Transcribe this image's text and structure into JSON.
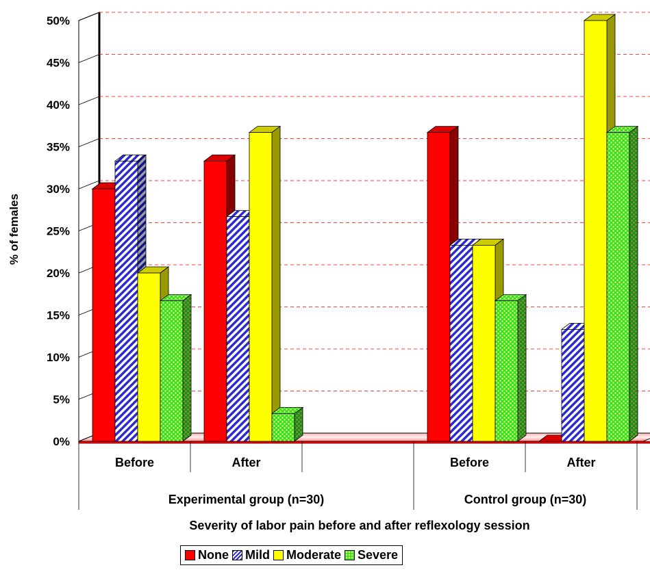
{
  "chart_data": {
    "type": "bar",
    "ylabel": "% of females",
    "xlabel": "Severity of labor pain before and after reflexology session",
    "ylim": [
      0,
      50
    ],
    "yticks": [
      "0%",
      "5%",
      "10%",
      "15%",
      "20%",
      "25%",
      "30%",
      "35%",
      "40%",
      "45%",
      "50%"
    ],
    "grid": true,
    "legend_position": "bottom",
    "groups": [
      {
        "label": "Experimental group (n=30)",
        "categories": [
          "Before",
          "After"
        ]
      },
      {
        "label": "Control group (n=30)",
        "categories": [
          "Before",
          "After"
        ]
      }
    ],
    "categories": [
      "Before",
      "After",
      "Before",
      "After"
    ],
    "series": [
      {
        "name": "None",
        "color": "#ff0000",
        "values": [
          30,
          33.3,
          36.7,
          0
        ]
      },
      {
        "name": "Mild",
        "color": "#3333cc",
        "values": [
          33.3,
          26.7,
          23.3,
          13.3
        ]
      },
      {
        "name": "Moderate",
        "color": "#ffff00",
        "values": [
          20,
          36.7,
          23.3,
          50
        ]
      },
      {
        "name": "Severe",
        "color": "#33cc33",
        "values": [
          16.7,
          3.3,
          16.7,
          36.7
        ]
      }
    ]
  }
}
